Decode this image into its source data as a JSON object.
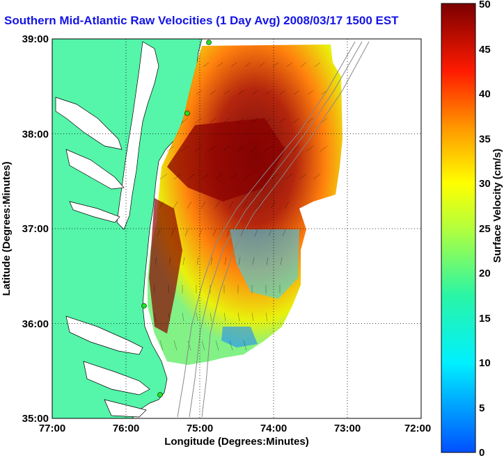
{
  "title": "Southern Mid-Atlantic Raw Velocities (1 Day Avg) 2008/03/17 1500 EST",
  "map": {
    "xlabel": "Longitude (Degrees:Minutes)",
    "ylabel": "Latitude (Degrees:Minutes)",
    "x_ticks": [
      "77:00",
      "76:00",
      "75:00",
      "74:00",
      "73:00",
      "72:00"
    ],
    "y_ticks": [
      "39:00",
      "38:00",
      "37:00",
      "36:00",
      "35:00"
    ],
    "lon_range": [
      -77,
      -72
    ],
    "lat_range": [
      35,
      39
    ],
    "land_color": "#55f5aa",
    "grid": true
  },
  "colorbar": {
    "label": "Surface Velocity (cm/s)",
    "ticks": [
      "0",
      "5",
      "10",
      "15",
      "20",
      "25",
      "30",
      "35",
      "40",
      "45",
      "50"
    ],
    "range": [
      0,
      50
    ],
    "colormap": "jet"
  }
}
